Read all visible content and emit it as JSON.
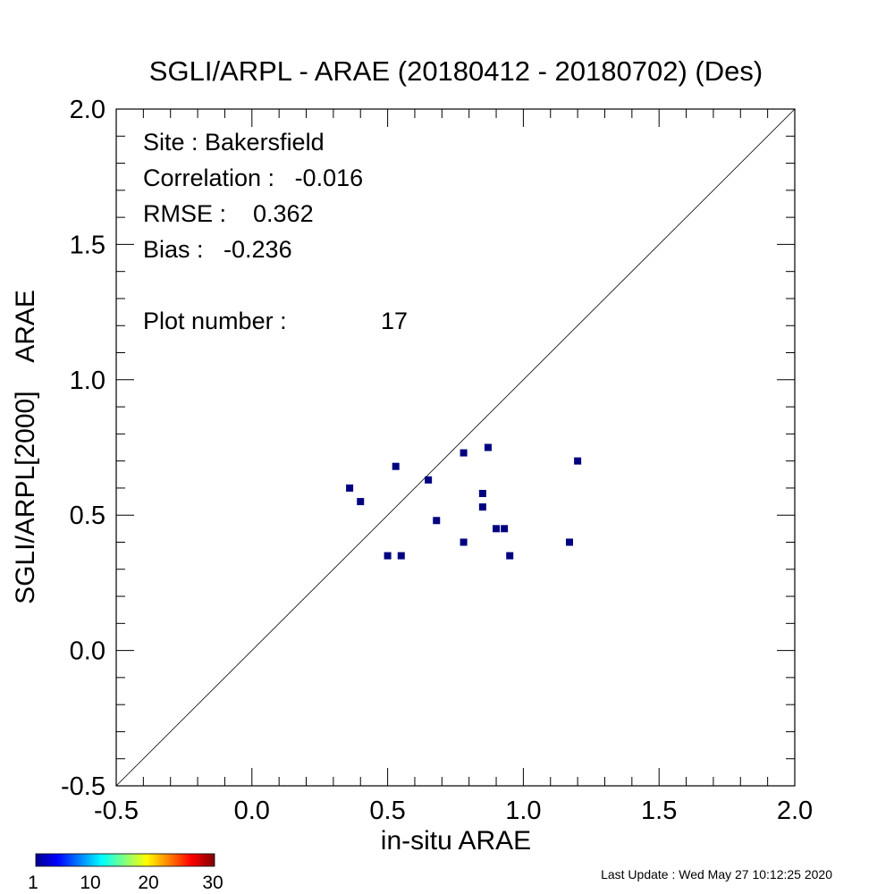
{
  "chart_data": {
    "type": "scatter",
    "title": "SGLI/ARPL - ARAE (20180412 - 20180702) (Des)",
    "xlabel": "in-situ ARAE",
    "ylabel": "SGLI/ARPL[2000]    ARAE",
    "xlim": [
      -0.5,
      2.0
    ],
    "ylim": [
      -0.5,
      2.0
    ],
    "x_ticks": [
      "-0.5",
      "0.0",
      "0.5",
      "1.0",
      "1.5",
      "2.0"
    ],
    "y_ticks": [
      "-0.5",
      "0.0",
      "0.5",
      "1.0",
      "1.5",
      "2.0"
    ],
    "reference_line": "1:1",
    "point_color": "#000080",
    "points": [
      {
        "x": 0.36,
        "y": 0.6
      },
      {
        "x": 0.4,
        "y": 0.55
      },
      {
        "x": 0.5,
        "y": 0.35
      },
      {
        "x": 0.53,
        "y": 0.68
      },
      {
        "x": 0.55,
        "y": 0.35
      },
      {
        "x": 0.65,
        "y": 0.63
      },
      {
        "x": 0.68,
        "y": 0.48
      },
      {
        "x": 0.78,
        "y": 0.73
      },
      {
        "x": 0.78,
        "y": 0.4
      },
      {
        "x": 0.85,
        "y": 0.58
      },
      {
        "x": 0.85,
        "y": 0.53
      },
      {
        "x": 0.87,
        "y": 0.75
      },
      {
        "x": 0.9,
        "y": 0.45
      },
      {
        "x": 0.93,
        "y": 0.45
      },
      {
        "x": 0.95,
        "y": 0.35
      },
      {
        "x": 1.17,
        "y": 0.4
      },
      {
        "x": 1.2,
        "y": 0.7
      }
    ],
    "stats": {
      "site": "Site : Bakersfield",
      "correlation": "Correlation :   -0.016",
      "rmse": "RMSE :    0.362",
      "bias": "Bias :   -0.236",
      "plot_number_label": "Plot number :",
      "plot_number_value": "17"
    },
    "colorbar": {
      "colors": [
        "#00008f",
        "#0000ff",
        "#00ffff",
        "#ffff00",
        "#ff0000",
        "#800000"
      ],
      "labels": [
        "1",
        "10",
        "20",
        "30"
      ]
    },
    "last_update": "Last Update : Wed May 27 10:12:25 2020"
  }
}
